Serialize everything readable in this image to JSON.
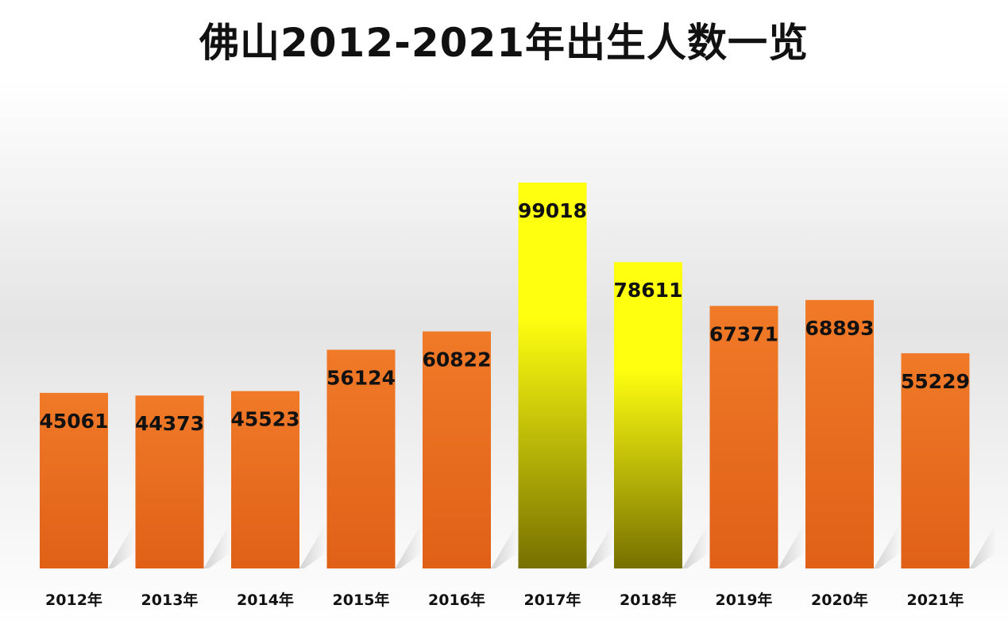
{
  "chart_data": {
    "type": "bar",
    "title": "佛山2012-2021年出生人数一览",
    "categories": [
      "2012年",
      "2013年",
      "2014年",
      "2015年",
      "2016年",
      "2017年",
      "2018年",
      "2019年",
      "2020年",
      "2021年"
    ],
    "values": [
      45061,
      44373,
      45523,
      56124,
      60822,
      99018,
      78611,
      67371,
      68893,
      55229
    ],
    "xlabel": "",
    "ylabel": "",
    "grid": false,
    "legend": "none",
    "colors": {
      "default_top": "#f07a28",
      "default_bottom": "#e06018",
      "highlight_top": "#ffff10",
      "highlight_bottom": "#767000",
      "label": "#111111"
    },
    "highlighted_categories": [
      "2017年",
      "2018年"
    ]
  }
}
